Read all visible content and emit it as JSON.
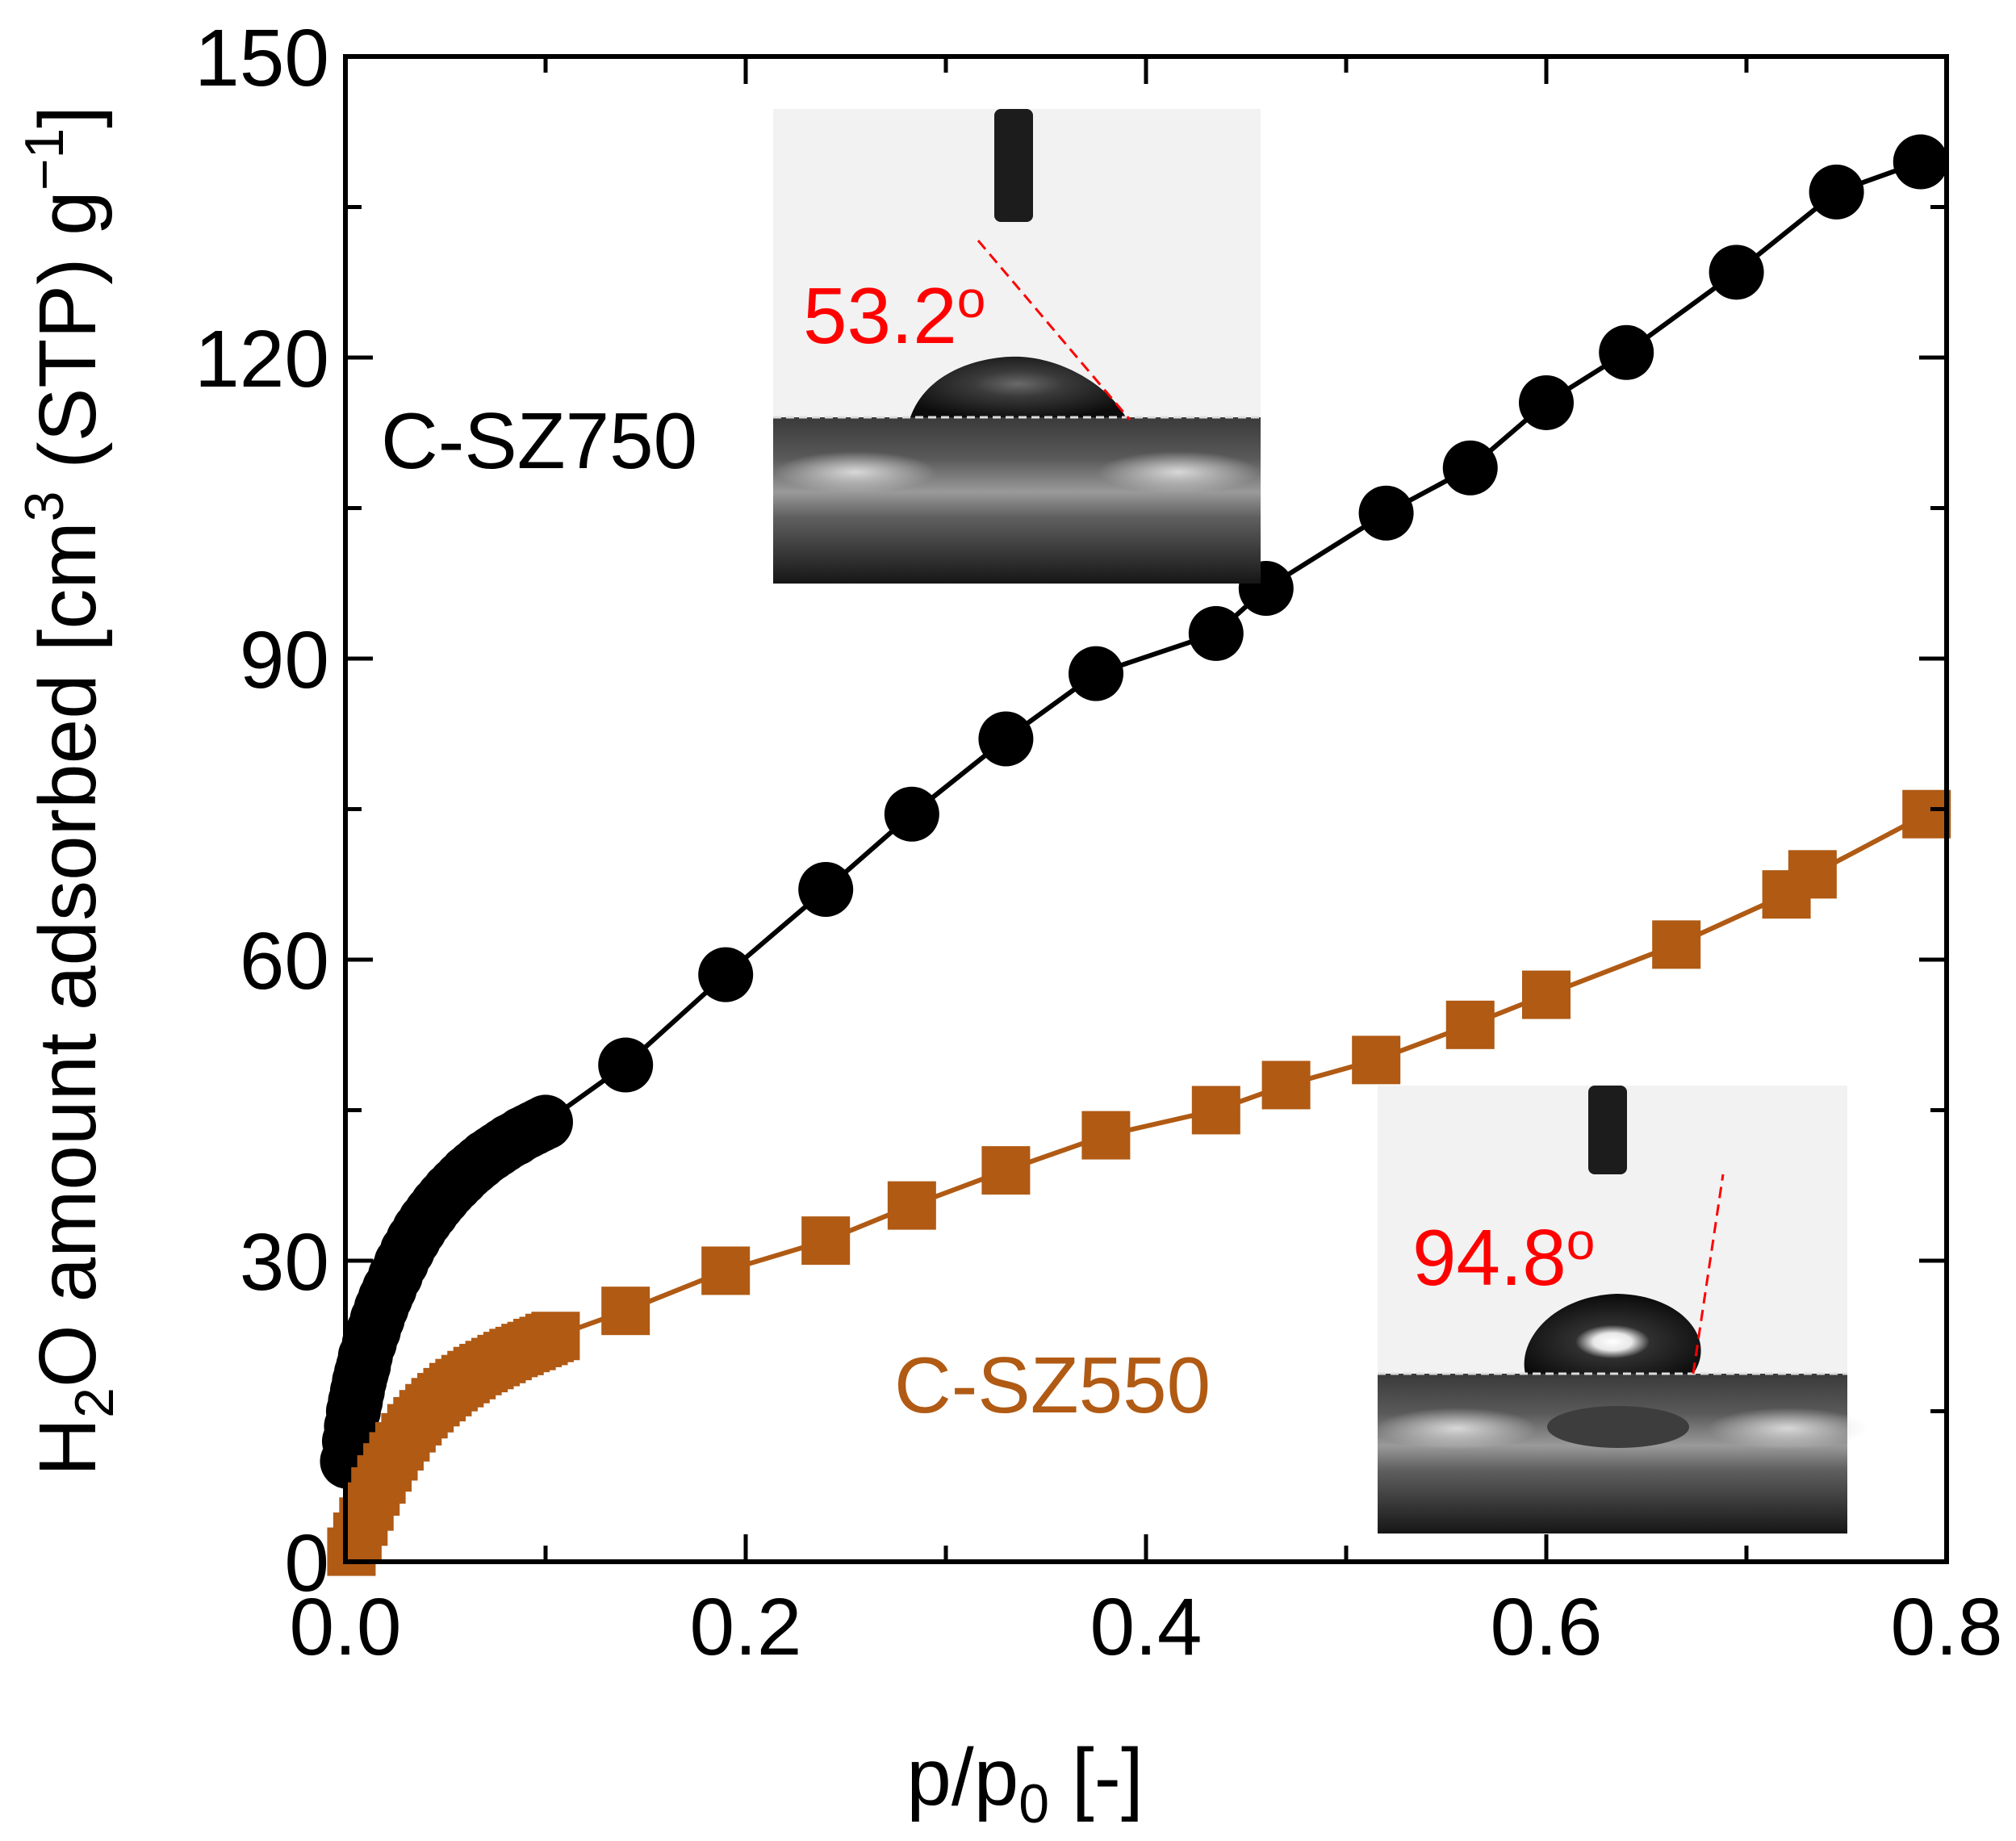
{
  "chart_data": {
    "type": "scatter",
    "title": "",
    "xlabel_parts": [
      "p/p",
      "0",
      " [-]"
    ],
    "ylabel_parts": [
      "H",
      "2",
      "O amount adsorbed [cm",
      "3",
      " (STP) g",
      "−1",
      "]"
    ],
    "xlim": [
      0.0,
      0.8
    ],
    "ylim": [
      0,
      150
    ],
    "xticks": [
      "0.0",
      "0.2",
      "0.4",
      "0.6",
      "0.8"
    ],
    "yticks": [
      "0",
      "30",
      "60",
      "90",
      "120",
      "150"
    ],
    "grid": false,
    "series": [
      {
        "name": "C-SZ750",
        "marker": "circle",
        "color": "#000000",
        "x": [
          0.001,
          0.002,
          0.003,
          0.004,
          0.005,
          0.006,
          0.007,
          0.008,
          0.009,
          0.01,
          0.012,
          0.014,
          0.016,
          0.018,
          0.02,
          0.022,
          0.025,
          0.028,
          0.031,
          0.034,
          0.037,
          0.04,
          0.043,
          0.046,
          0.049,
          0.052,
          0.055,
          0.058,
          0.061,
          0.064,
          0.067,
          0.07,
          0.073,
          0.076,
          0.079,
          0.082,
          0.085,
          0.088,
          0.091,
          0.094,
          0.097,
          0.1,
          0.14,
          0.19,
          0.24,
          0.283,
          0.33,
          0.375,
          0.435,
          0.46,
          0.52,
          0.562,
          0.6,
          0.64,
          0.695,
          0.745,
          0.787
        ],
        "y": [
          10,
          12,
          13.5,
          15,
          16,
          17,
          18,
          18.8,
          19.5,
          20.5,
          21.8,
          23,
          24.2,
          25.3,
          26.3,
          27.2,
          28.5,
          29.8,
          31,
          32.1,
          33.1,
          34,
          34.8,
          35.6,
          36.3,
          37,
          37.6,
          38.2,
          38.8,
          39.3,
          39.8,
          40.3,
          40.7,
          41.1,
          41.5,
          41.9,
          42.2,
          42.6,
          42.9,
          43.2,
          43.5,
          43.8,
          49.5,
          58.5,
          67,
          74.5,
          82,
          88.5,
          92.5,
          97,
          104.5,
          109,
          115.5,
          120.5,
          128.5,
          136.5,
          139.5
        ]
      },
      {
        "name": "C-SZ550",
        "marker": "square",
        "color": "#b05a14",
        "x": [
          0.003,
          0.006,
          0.009,
          0.012,
          0.015,
          0.018,
          0.021,
          0.024,
          0.027,
          0.03,
          0.033,
          0.036,
          0.039,
          0.042,
          0.045,
          0.048,
          0.051,
          0.054,
          0.057,
          0.06,
          0.063,
          0.066,
          0.069,
          0.072,
          0.075,
          0.078,
          0.081,
          0.084,
          0.087,
          0.09,
          0.093,
          0.096,
          0.099,
          0.102,
          0.105,
          0.14,
          0.19,
          0.24,
          0.283,
          0.33,
          0.38,
          0.435,
          0.47,
          0.515,
          0.562,
          0.6,
          0.665,
          0.72,
          0.733,
          0.79
        ],
        "y": [
          1,
          2.5,
          4,
          5.5,
          7,
          8.2,
          9.4,
          10.5,
          11.5,
          12.4,
          13.3,
          14,
          14.7,
          15.3,
          15.9,
          16.4,
          16.9,
          17.4,
          17.8,
          18.2,
          18.6,
          19,
          19.3,
          19.6,
          19.9,
          20.2,
          20.5,
          20.8,
          21,
          21.3,
          21.5,
          21.8,
          22,
          22.3,
          22.5,
          25,
          29,
          32,
          35.5,
          39,
          42.5,
          45,
          47.5,
          50,
          53.5,
          56.5,
          61.5,
          66.5,
          68.5,
          74.5
        ]
      }
    ],
    "annotations": {
      "series_label_750": "C-SZ750",
      "series_label_550": "C-SZ550",
      "contact_angle_750": "53.2",
      "contact_angle_550": "94.8",
      "degree_mark": "o"
    }
  }
}
